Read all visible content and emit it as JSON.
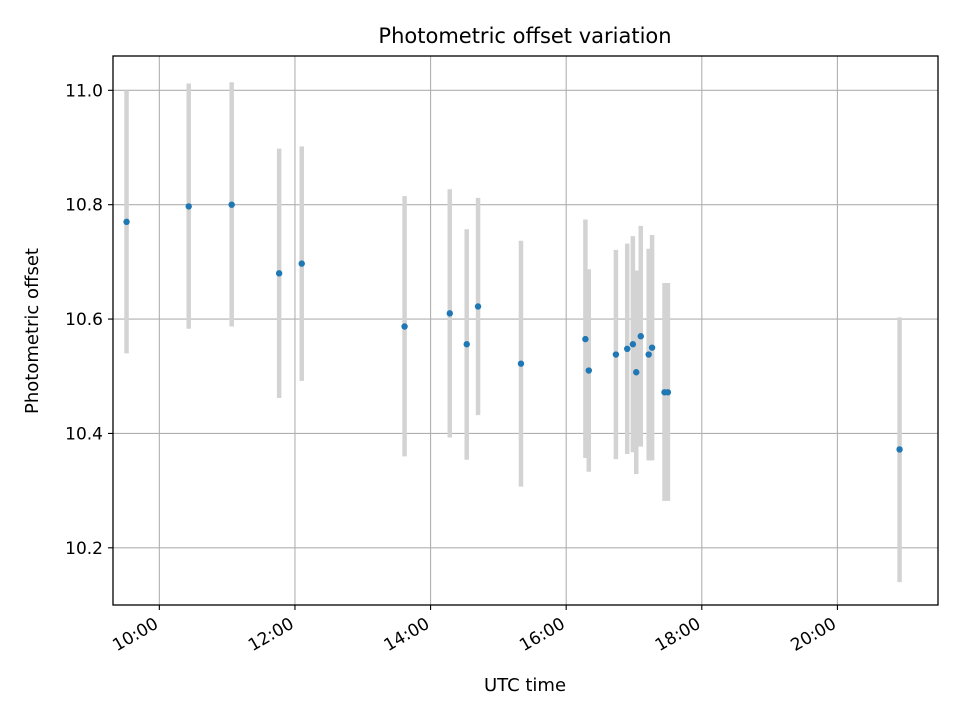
{
  "chart_data": {
    "type": "scatter",
    "title": "Photometric offset variation",
    "xlabel": "UTC time",
    "ylabel": "Photometric offset",
    "x_ticks": [
      "10:00",
      "12:00",
      "14:00",
      "16:00",
      "18:00",
      "20:00"
    ],
    "y_ticks": [
      "10.2",
      "10.4",
      "10.6",
      "10.8",
      "11.0"
    ],
    "xlim": [
      "09:19",
      "21:29"
    ],
    "ylim": [
      10.1,
      11.06
    ],
    "grid": true,
    "series": [
      {
        "marker_color": "#1f77b4",
        "errorbar_color": "#d3d3d3",
        "points": [
          {
            "x": "09:31",
            "y": 10.77,
            "ylow": 10.54,
            "yhigh": 11.0
          },
          {
            "x": "10:26",
            "y": 10.797,
            "ylow": 10.583,
            "yhigh": 11.012
          },
          {
            "x": "11:04",
            "y": 10.8,
            "ylow": 10.587,
            "yhigh": 11.014
          },
          {
            "x": "11:46",
            "y": 10.68,
            "ylow": 10.462,
            "yhigh": 10.898
          },
          {
            "x": "12:06",
            "y": 10.697,
            "ylow": 10.492,
            "yhigh": 10.902
          },
          {
            "x": "13:37",
            "y": 10.587,
            "ylow": 10.36,
            "yhigh": 10.815
          },
          {
            "x": "14:17",
            "y": 10.61,
            "ylow": 10.393,
            "yhigh": 10.827
          },
          {
            "x": "14:32",
            "y": 10.556,
            "ylow": 10.354,
            "yhigh": 10.757
          },
          {
            "x": "14:42",
            "y": 10.622,
            "ylow": 10.432,
            "yhigh": 10.812
          },
          {
            "x": "15:20",
            "y": 10.522,
            "ylow": 10.307,
            "yhigh": 10.737
          },
          {
            "x": "16:17",
            "y": 10.565,
            "ylow": 10.357,
            "yhigh": 10.774
          },
          {
            "x": "16:20",
            "y": 10.51,
            "ylow": 10.333,
            "yhigh": 10.687
          },
          {
            "x": "16:44",
            "y": 10.538,
            "ylow": 10.355,
            "yhigh": 10.721
          },
          {
            "x": "16:54",
            "y": 10.548,
            "ylow": 10.364,
            "yhigh": 10.732
          },
          {
            "x": "16:59",
            "y": 10.556,
            "ylow": 10.367,
            "yhigh": 10.745
          },
          {
            "x": "17:02",
            "y": 10.507,
            "ylow": 10.329,
            "yhigh": 10.685
          },
          {
            "x": "17:06",
            "y": 10.57,
            "ylow": 10.377,
            "yhigh": 10.763
          },
          {
            "x": "17:13",
            "y": 10.538,
            "ylow": 10.353,
            "yhigh": 10.723
          },
          {
            "x": "17:16",
            "y": 10.55,
            "ylow": 10.353,
            "yhigh": 10.747
          },
          {
            "x": "17:27",
            "y": 10.472,
            "ylow": 10.282,
            "yhigh": 10.663
          },
          {
            "x": "17:30",
            "y": 10.472,
            "ylow": 10.282,
            "yhigh": 10.663
          },
          {
            "x": "20:55",
            "y": 10.372,
            "ylow": 10.14,
            "yhigh": 10.603
          }
        ]
      }
    ]
  }
}
